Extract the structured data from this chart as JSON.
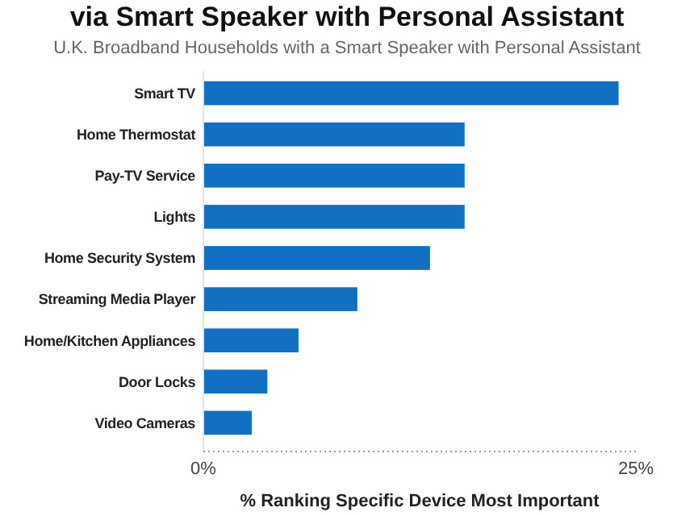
{
  "chart_data": {
    "type": "bar",
    "orientation": "horizontal",
    "title": "via Smart Speaker with Personal Assistant",
    "subtitle": "U.K. Broadband Households with a Smart Speaker with Personal Assistant",
    "xlabel": "% Ranking Specific Device Most Important",
    "categories": [
      "Smart TV",
      "Home Thermostat",
      "Pay-TV Service",
      "Lights",
      "Home Security System",
      "Streaming Media Player",
      "Home/Kitchen Appliances",
      "Door Locks",
      "Video Cameras"
    ],
    "values": [
      24,
      15.1,
      15.1,
      15.1,
      13.1,
      8.9,
      5.5,
      3.7,
      2.8
    ],
    "color": "#1170c4",
    "xlim": [
      0,
      25
    ],
    "xticks": [
      {
        "value": 0,
        "label": "0%"
      },
      {
        "value": 25,
        "label": "25%"
      }
    ],
    "grid": false
  }
}
